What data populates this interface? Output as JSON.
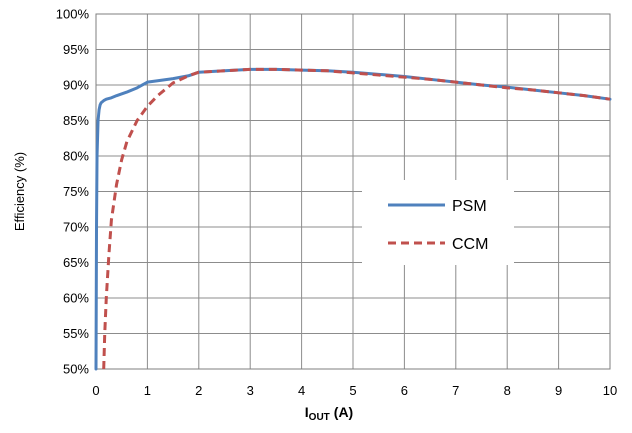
{
  "chart_data": {
    "type": "line",
    "xlabel": {
      "main": "I",
      "sub": "OUT",
      "unit": "(A)"
    },
    "ylabel": "Efficiency (%)",
    "xlim": [
      0,
      10
    ],
    "ylim": [
      50,
      100
    ],
    "x_ticks": [
      0,
      1,
      2,
      3,
      4,
      5,
      6,
      7,
      8,
      9,
      10
    ],
    "y_ticks": [
      50,
      55,
      60,
      65,
      70,
      75,
      80,
      85,
      90,
      95,
      100
    ],
    "y_tick_suffix": "%",
    "grid": true,
    "legend_position": "center-right",
    "series": [
      {
        "name": "PSM",
        "color": "#4f81bd",
        "style": "solid",
        "x": [
          0.0,
          0.01,
          0.02,
          0.04,
          0.06,
          0.08,
          0.1,
          0.15,
          0.2,
          0.3,
          0.4,
          0.6,
          0.8,
          1.0,
          1.2,
          1.5,
          1.8,
          2.0,
          2.5,
          3.0,
          3.5,
          4.0,
          4.5,
          5.0,
          5.5,
          6.0,
          6.5,
          7.0,
          7.5,
          8.0,
          8.5,
          9.0,
          9.5,
          10.0
        ],
        "y": [
          50.0,
          70.0,
          80.0,
          85.0,
          86.5,
          87.2,
          87.5,
          87.8,
          88.0,
          88.2,
          88.5,
          89.0,
          89.6,
          90.4,
          90.6,
          90.9,
          91.3,
          91.8,
          92.0,
          92.2,
          92.2,
          92.1,
          92.0,
          91.8,
          91.5,
          91.2,
          90.8,
          90.4,
          90.0,
          89.7,
          89.3,
          88.9,
          88.5,
          88.0
        ]
      },
      {
        "name": "CCM",
        "color": "#c0504d",
        "style": "dashed",
        "x": [
          0.15,
          0.17,
          0.2,
          0.25,
          0.3,
          0.4,
          0.5,
          0.6,
          0.8,
          1.0,
          1.2,
          1.5,
          1.8,
          2.0,
          2.5,
          3.0,
          3.5,
          4.0,
          4.5,
          5.0,
          5.5,
          6.0,
          6.5,
          7.0,
          7.5,
          8.0,
          8.5,
          9.0,
          9.5,
          10.0
        ],
        "y": [
          50.0,
          55.0,
          60.0,
          66.0,
          71.0,
          76.0,
          79.5,
          82.0,
          85.0,
          87.0,
          88.5,
          90.3,
          91.3,
          91.8,
          92.0,
          92.2,
          92.2,
          92.1,
          92.0,
          91.7,
          91.4,
          91.1,
          90.8,
          90.4,
          90.0,
          89.6,
          89.3,
          88.9,
          88.5,
          88.0
        ]
      }
    ]
  }
}
